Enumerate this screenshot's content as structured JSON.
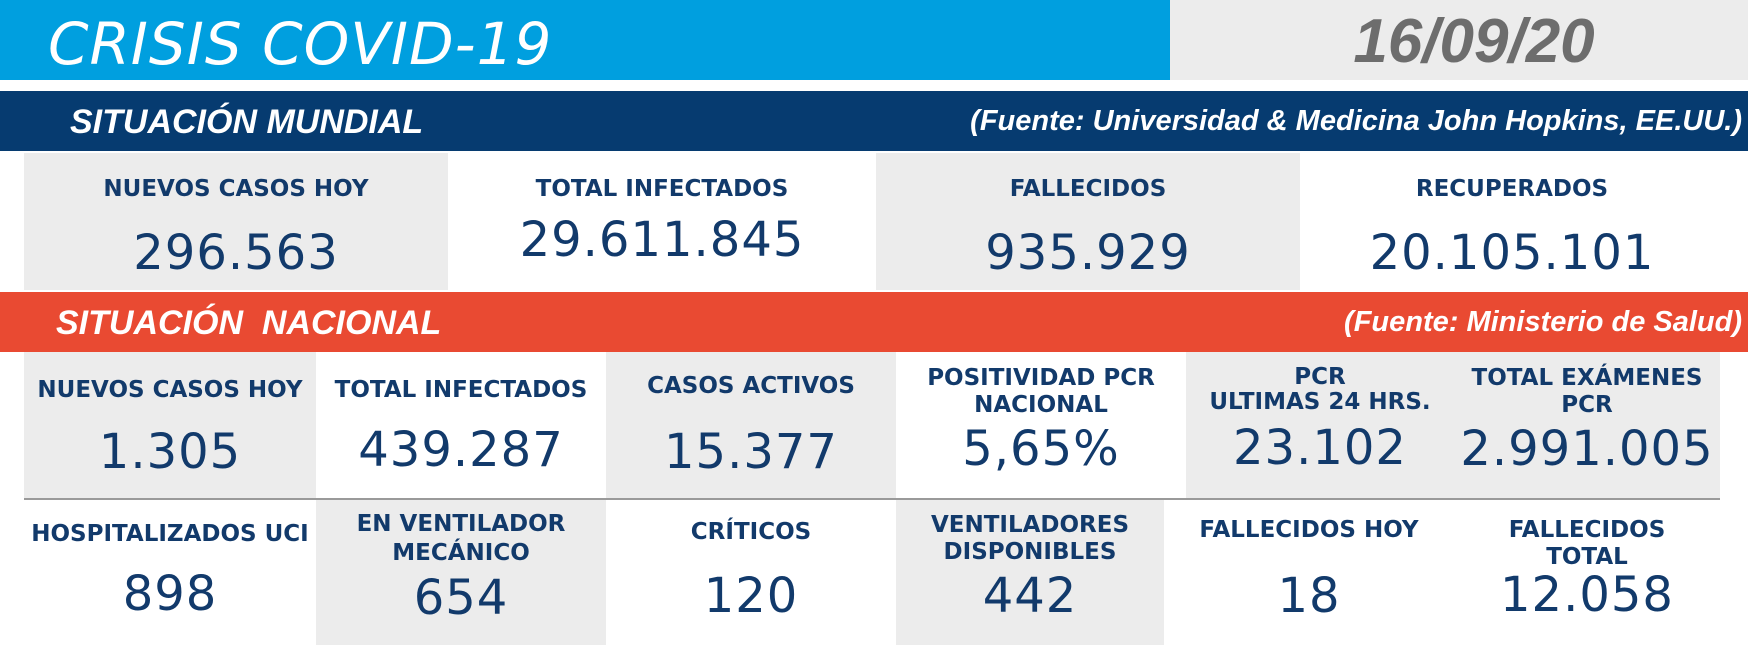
{
  "header": {
    "title": "CRISIS COVID-19",
    "date": "16/09/20"
  },
  "mundial": {
    "title": "SITUACIÓN MUNDIAL",
    "source": "(Fuente: Universidad & Medicina John Hopkins, EE.UU.)",
    "stats": [
      {
        "label": "NUEVOS CASOS HOY",
        "value": "296.563"
      },
      {
        "label": "TOTAL INFECTADOS",
        "value": "29.611.845"
      },
      {
        "label": "FALLECIDOS",
        "value": "935.929"
      },
      {
        "label": "RECUPERADOS",
        "value": "20.105.101"
      }
    ]
  },
  "nacional": {
    "title": "SITUACIÓN  NACIONAL",
    "source": "(Fuente: Ministerio de Salud)",
    "row1": [
      {
        "label": "NUEVOS CASOS HOY",
        "value": "1.305"
      },
      {
        "label": "TOTAL INFECTADOS",
        "value": "439.287"
      },
      {
        "label": "CASOS ACTIVOS",
        "value": "15.377"
      },
      {
        "label_line1": "POSITIVIDAD PCR",
        "label_line2": "NACIONAL",
        "value": "5,65%"
      },
      {
        "label_line1": "PCR",
        "label_line2": "ULTIMAS 24 HRS.",
        "value": "23.102"
      },
      {
        "label_line1": "TOTAL EXÁMENES",
        "label_line2": "PCR",
        "value": "2.991.005"
      }
    ],
    "row2": [
      {
        "label": "HOSPITALIZADOS UCI",
        "value": "898"
      },
      {
        "label_line1": "EN VENTILADOR",
        "label_line2": "MECÁNICO",
        "value": "654"
      },
      {
        "label": "CRÍTICOS",
        "value": "120"
      },
      {
        "label_line1": "VENTILADORES",
        "label_line2": "DISPONIBLES",
        "value": "442"
      },
      {
        "label": "FALLECIDOS HOY",
        "value": "18"
      },
      {
        "label_line1": "FALLECIDOS",
        "label_line2": "TOTAL",
        "value": "12.058"
      }
    ]
  },
  "colors": {
    "title_blue": "#009fdf",
    "navy": "#063b70",
    "red": "#e94a32",
    "grey": "#ececec",
    "text": "#123a6b"
  }
}
